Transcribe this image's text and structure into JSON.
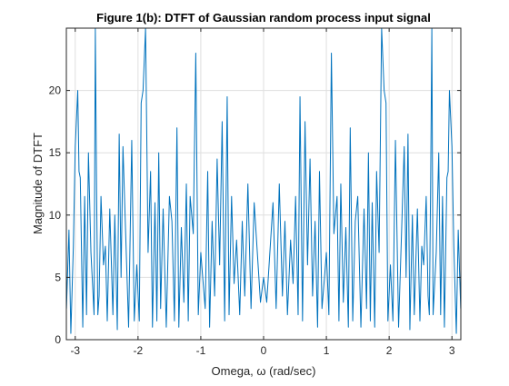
{
  "chart_data": {
    "type": "line",
    "title": "Figure 1(b): DTFT of Gaussian random process input signal",
    "xlabel": "Omega, ω (rad/sec)",
    "ylabel": "Magnitude of DTFT",
    "xlim": [
      -3.1416,
      3.1416
    ],
    "ylim": [
      0,
      25
    ],
    "xticks": [
      -3,
      -2,
      -1,
      0,
      1,
      2,
      3
    ],
    "xtick_labels": [
      "-3",
      "-2",
      "-1",
      "0",
      "1",
      "2",
      "3"
    ],
    "yticks": [
      0,
      5,
      10,
      15,
      20
    ],
    "ytick_labels": [
      "0",
      "5",
      "10",
      "15",
      "20"
    ],
    "grid": true,
    "line_color": "#0072bd",
    "series": [
      {
        "x": [
          -3.14,
          -3.1,
          -3.07,
          -3.03,
          -3.0,
          -2.96,
          -2.94,
          -2.92,
          -2.88,
          -2.85,
          -2.82,
          -2.79,
          -2.75,
          -2.7,
          -2.68,
          -2.66,
          -2.64,
          -2.62,
          -2.59,
          -2.55,
          -2.52,
          -2.49,
          -2.45,
          -2.4,
          -2.37,
          -2.33,
          -2.3,
          -2.27,
          -2.24,
          -2.2,
          -2.15,
          -2.1,
          -2.06,
          -2.02,
          -1.98,
          -1.95,
          -1.92,
          -1.88,
          -1.84,
          -1.8,
          -1.77,
          -1.73,
          -1.7,
          -1.67,
          -1.64,
          -1.6,
          -1.55,
          -1.5,
          -1.46,
          -1.42,
          -1.38,
          -1.35,
          -1.31,
          -1.27,
          -1.23,
          -1.2,
          -1.17,
          -1.12,
          -1.08,
          -1.04,
          -1.0,
          -0.97,
          -0.93,
          -0.89,
          -0.86,
          -0.82,
          -0.78,
          -0.74,
          -0.7,
          -0.66,
          -0.62,
          -0.58,
          -0.55,
          -0.51,
          -0.47,
          -0.43,
          -0.38,
          -0.34,
          -0.3,
          -0.25,
          -0.2,
          -0.15,
          -0.1,
          -0.05,
          0.0,
          0.05,
          0.1,
          0.15,
          0.2,
          0.25,
          0.3,
          0.34,
          0.38,
          0.43,
          0.47,
          0.51,
          0.55,
          0.58,
          0.62,
          0.66,
          0.7,
          0.74,
          0.78,
          0.82,
          0.86,
          0.89,
          0.93,
          0.97,
          1.0,
          1.04,
          1.08,
          1.12,
          1.17,
          1.2,
          1.23,
          1.27,
          1.31,
          1.35,
          1.38,
          1.42,
          1.46,
          1.5,
          1.55,
          1.6,
          1.64,
          1.67,
          1.7,
          1.73,
          1.77,
          1.8,
          1.84,
          1.88,
          1.92,
          1.95,
          1.98,
          2.02,
          2.06,
          2.1,
          2.15,
          2.2,
          2.24,
          2.27,
          2.3,
          2.33,
          2.37,
          2.4,
          2.45,
          2.49,
          2.52,
          2.55,
          2.59,
          2.62,
          2.64,
          2.66,
          2.68,
          2.7,
          2.75,
          2.79,
          2.82,
          2.85,
          2.88,
          2.92,
          2.94,
          2.96,
          3.0,
          3.03,
          3.07,
          3.1,
          3.14
        ],
        "y": [
          2.5,
          8.8,
          0.5,
          7.5,
          15.5,
          20.0,
          13.5,
          13.0,
          1.0,
          11.5,
          2.0,
          15.0,
          7.0,
          2.0,
          25.0,
          12.0,
          2.0,
          3.5,
          11.5,
          6.0,
          7.5,
          1.5,
          10.5,
          2.0,
          10.0,
          0.8,
          16.5,
          5.0,
          15.5,
          9.0,
          1.0,
          16.0,
          1.5,
          6.0,
          1.5,
          19.0,
          20.0,
          25.0,
          7.0,
          13.5,
          1.0,
          11.0,
          1.5,
          15.0,
          2.5,
          10.5,
          1.0,
          11.5,
          9.5,
          1.5,
          17.0,
          1.0,
          9.0,
          3.0,
          12.5,
          1.5,
          11.5,
          8.5,
          23.0,
          2.0,
          7.0,
          5.0,
          2.5,
          13.5,
          1.0,
          9.5,
          3.5,
          14.5,
          6.0,
          17.5,
          1.5,
          19.5,
          2.0,
          11.5,
          4.5,
          8.0,
          2.0,
          9.5,
          3.5,
          12.5,
          2.5,
          11.0,
          7.0,
          3.0,
          5.0,
          3.0,
          7.0,
          11.0,
          2.5,
          12.5,
          3.5,
          9.5,
          2.0,
          8.0,
          4.5,
          11.5,
          2.0,
          19.5,
          1.5,
          17.5,
          6.0,
          14.5,
          3.5,
          9.5,
          1.0,
          13.5,
          2.5,
          5.0,
          7.0,
          2.0,
          23.0,
          8.5,
          11.5,
          1.5,
          12.5,
          3.0,
          9.0,
          1.0,
          17.0,
          1.5,
          9.5,
          11.5,
          1.0,
          10.5,
          2.5,
          15.0,
          1.5,
          11.0,
          1.0,
          13.5,
          7.0,
          25.0,
          20.0,
          19.0,
          1.5,
          6.0,
          1.5,
          16.0,
          1.0,
          9.0,
          15.5,
          5.0,
          16.5,
          0.8,
          10.0,
          2.0,
          10.5,
          1.5,
          7.5,
          6.0,
          11.5,
          3.5,
          2.0,
          12.0,
          25.0,
          2.0,
          7.0,
          15.0,
          2.0,
          11.5,
          1.0,
          13.0,
          13.5,
          20.0,
          15.5,
          7.5,
          0.5,
          8.8,
          2.5
        ]
      }
    ]
  }
}
